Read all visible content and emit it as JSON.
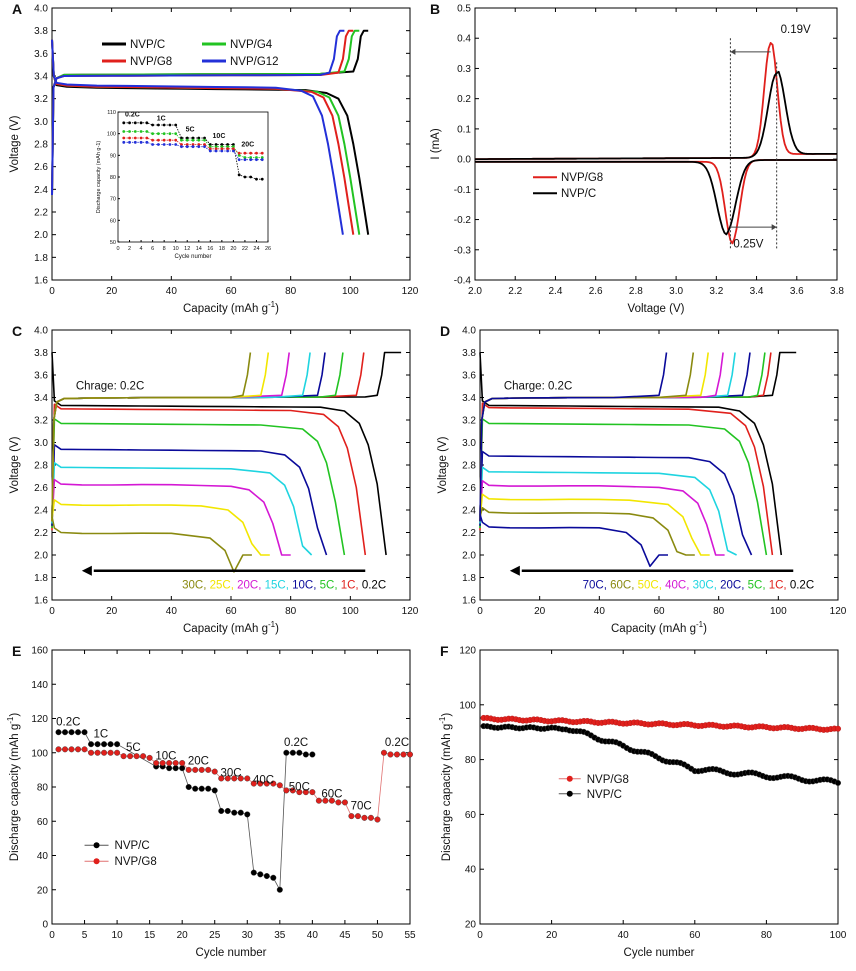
{
  "colors": {
    "black": "#000000",
    "red": "#e0201c",
    "green": "#22c322",
    "blue": "#2330d8",
    "olive": "#8a8a10",
    "yellow": "#f2e600",
    "magenta": "#d418d4",
    "cyan": "#1fd4e0",
    "navy": "#0a0a9a",
    "orange": "#f0a020"
  },
  "chart_data": [
    {
      "id": "A",
      "type": "line",
      "label": "A",
      "xlabel": "Capacity (mAh g",
      "xlabel_sup": "-1",
      "xlabel_end": ")",
      "ylabel": "Voltage (V)",
      "xlim": [
        0,
        120
      ],
      "ylim": [
        1.6,
        4.0
      ],
      "xticks": [
        "0",
        "20",
        "40",
        "60",
        "80",
        "100",
        "120"
      ],
      "yticks": [
        "1.6",
        "1.8",
        "2.0",
        "2.2",
        "2.4",
        "2.6",
        "2.8",
        "3.0",
        "3.2",
        "3.4",
        "3.6",
        "3.8",
        "4.0"
      ],
      "legend": [
        {
          "name": "NVP/C",
          "color": "#000000"
        },
        {
          "name": "NVP/G4",
          "color": "#22c322"
        },
        {
          "name": "NVP/G8",
          "color": "#e0201c"
        },
        {
          "name": "NVP/G12",
          "color": "#2330d8"
        }
      ],
      "series": [
        {
          "name": "NVP/C",
          "color": "#000000",
          "charge_cap": 105,
          "discharge_cap": 106,
          "charge_v": 3.41,
          "discharge_v": 3.3
        },
        {
          "name": "NVP/G4",
          "color": "#22c322",
          "charge_cap": 102,
          "discharge_cap": 103,
          "charge_v": 3.41,
          "discharge_v": 3.31
        },
        {
          "name": "NVP/G8",
          "color": "#e0201c",
          "charge_cap": 100,
          "discharge_cap": 101,
          "charge_v": 3.4,
          "discharge_v": 3.31
        },
        {
          "name": "NVP/G12",
          "color": "#2330d8",
          "charge_cap": 97,
          "discharge_cap": 97.5,
          "charge_v": 3.4,
          "discharge_v": 3.32
        }
      ],
      "inset": {
        "xlabel": "Cycle number",
        "ylabel": "Discharge capacity (mAh g",
        "ylabel_sup": "-1",
        "ylabel_end": ")",
        "xlim": [
          0,
          26
        ],
        "ylim": [
          50,
          110
        ],
        "xticks": [
          "0",
          "2",
          "4",
          "6",
          "8",
          "10",
          "12",
          "14",
          "16",
          "18",
          "20",
          "22",
          "24",
          "26"
        ],
        "yticks": [
          "50",
          "60",
          "70",
          "80",
          "90",
          "100",
          "110"
        ],
        "rate_labels": [
          "0.2C",
          "1C",
          "5C",
          "10C",
          "20C"
        ],
        "series": [
          {
            "name": "NVP/C",
            "color": "#000000",
            "values": [
              105,
              105,
              105,
              105,
              105,
              104,
              104,
              104,
              104,
              104,
              98,
              98,
              98,
              98,
              98,
              95,
              95,
              95,
              95,
              95,
              81,
              80,
              80,
              79,
              79
            ]
          },
          {
            "name": "NVP/G4",
            "color": "#22c322",
            "values": [
              101,
              101,
              101,
              101,
              101,
              100,
              100,
              100,
              100,
              100,
              97,
              97,
              97,
              97,
              97,
              94,
              94,
              94,
              94,
              94,
              90,
              89,
              89,
              89,
              89
            ]
          },
          {
            "name": "NVP/G8",
            "color": "#e0201c",
            "values": [
              98,
              98,
              98,
              98,
              98,
              97,
              97,
              97,
              97,
              97,
              95,
              95,
              95,
              95,
              95,
              93,
              93,
              93,
              93,
              93,
              91,
              91,
              91,
              91,
              91
            ]
          },
          {
            "name": "NVP/G12",
            "color": "#2330d8",
            "values": [
              96,
              96,
              96,
              96,
              96,
              95,
              95,
              95,
              95,
              95,
              94,
              94,
              94,
              94,
              94,
              92,
              92,
              92,
              92,
              92,
              88,
              88,
              88,
              88,
              88
            ]
          }
        ]
      }
    },
    {
      "id": "B",
      "type": "line",
      "label": "B",
      "xlabel": "Voltage (V)",
      "ylabel": "I (mA)",
      "xlim": [
        2.0,
        3.8
      ],
      "ylim": [
        -0.4,
        0.5
      ],
      "xticks": [
        "2.0",
        "2.2",
        "2.4",
        "2.6",
        "2.8",
        "3.0",
        "3.2",
        "3.4",
        "3.6",
        "3.8"
      ],
      "yticks": [
        "-0.4",
        "-0.3",
        "-0.2",
        "-0.1",
        "0.0",
        "0.1",
        "0.2",
        "0.3",
        "0.4",
        "0.5"
      ],
      "legend": [
        {
          "name": "NVP/G8",
          "color": "#e0201c"
        },
        {
          "name": "NVP/C",
          "color": "#000000"
        }
      ],
      "annotations": {
        "top": "0.19V",
        "bottom": "0.25V"
      },
      "series": [
        {
          "name": "NVP/G8",
          "color": "#e0201c",
          "ox_peak_v": 3.47,
          "ox_peak_i": 0.38,
          "red_peak_v": 3.28,
          "red_peak_i": -0.27
        },
        {
          "name": "NVP/C",
          "color": "#000000",
          "ox_peak_v": 3.5,
          "ox_peak_i": 0.28,
          "red_peak_v": 3.25,
          "red_peak_i": -0.24
        }
      ]
    },
    {
      "id": "C",
      "type": "line",
      "label": "C",
      "xlabel": "Capacity (mAh g",
      "xlabel_sup": "-1",
      "xlabel_end": ")",
      "ylabel": "Voltage (V)",
      "xlim": [
        0,
        120
      ],
      "ylim": [
        1.6,
        4.0
      ],
      "xticks": [
        "0",
        "20",
        "40",
        "60",
        "80",
        "100",
        "120"
      ],
      "yticks": [
        "1.6",
        "1.8",
        "2.0",
        "2.2",
        "2.4",
        "2.6",
        "2.8",
        "3.0",
        "3.2",
        "3.4",
        "3.6",
        "3.8",
        "4.0"
      ],
      "charge_label": "Chrage: 0.2C",
      "rate_labels": [
        {
          "t": "30C",
          "color": "#8a8a10"
        },
        {
          "t": "25C",
          "color": "#f2e600"
        },
        {
          "t": "20C",
          "color": "#d418d4"
        },
        {
          "t": "15C",
          "color": "#1fd4e0"
        },
        {
          "t": "10C",
          "color": "#0a0a9a"
        },
        {
          "t": "5C",
          "color": "#22c322"
        },
        {
          "t": "1C",
          "color": "#e0201c"
        },
        {
          "t": "0.2C",
          "color": "#000000"
        }
      ],
      "series": [
        {
          "name": "0.2C",
          "color": "#000000",
          "discharge_cap": 112,
          "plateau_v": 3.33,
          "charge_cap": 112
        },
        {
          "name": "1C",
          "color": "#e0201c",
          "discharge_cap": 105,
          "plateau_v": 3.3,
          "charge_cap": 105
        },
        {
          "name": "5C",
          "color": "#22c322",
          "discharge_cap": 98,
          "plateau_v": 3.17,
          "charge_cap": 98
        },
        {
          "name": "10C",
          "color": "#0a0a9a",
          "discharge_cap": 92,
          "plateau_v": 2.94,
          "charge_cap": 92
        },
        {
          "name": "15C",
          "color": "#1fd4e0",
          "discharge_cap": 87,
          "plateau_v": 2.78,
          "charge_cap": 87
        },
        {
          "name": "20C",
          "color": "#d418d4",
          "discharge_cap": 80,
          "plateau_v": 2.63,
          "charge_cap": 80
        },
        {
          "name": "25C",
          "color": "#f2e600",
          "discharge_cap": 73,
          "plateau_v": 2.45,
          "charge_cap": 73
        },
        {
          "name": "30C",
          "color": "#8a8a10",
          "discharge_cap": 67,
          "plateau_v": 2.2,
          "charge_cap": 67
        }
      ]
    },
    {
      "id": "D",
      "type": "line",
      "label": "D",
      "xlabel": "Capacity (mAh g",
      "xlabel_sup": "-1",
      "xlabel_end": ")",
      "ylabel": "Voltage (V)",
      "xlim": [
        0,
        120
      ],
      "ylim": [
        1.6,
        4.0
      ],
      "xticks": [
        "0",
        "20",
        "40",
        "60",
        "80",
        "100",
        "120"
      ],
      "yticks": [
        "1.6",
        "1.8",
        "2.0",
        "2.2",
        "2.4",
        "2.6",
        "2.8",
        "3.0",
        "3.2",
        "3.4",
        "3.6",
        "3.8",
        "4.0"
      ],
      "charge_label": "Charge: 0.2C",
      "rate_labels": [
        {
          "t": "70C",
          "color": "#0a0a9a"
        },
        {
          "t": "60C",
          "color": "#8a8a10"
        },
        {
          "t": "50C",
          "color": "#f2e600"
        },
        {
          "t": "40C",
          "color": "#d418d4"
        },
        {
          "t": "30C",
          "color": "#1fd4e0"
        },
        {
          "t": "20C",
          "color": "#0a0a9a"
        },
        {
          "t": "5C",
          "color": "#22c322"
        },
        {
          "t": "1C",
          "color": "#e0201c"
        },
        {
          "t": "0.2C",
          "color": "#000000"
        }
      ],
      "series": [
        {
          "name": "0.2C",
          "color": "#000000",
          "discharge_cap": 101,
          "plateau_v": 3.33,
          "charge_cap": 101
        },
        {
          "name": "1C",
          "color": "#e0201c",
          "discharge_cap": 98,
          "plateau_v": 3.31,
          "charge_cap": 98
        },
        {
          "name": "5C",
          "color": "#22c322",
          "discharge_cap": 96,
          "plateau_v": 3.17,
          "charge_cap": 96
        },
        {
          "name": "20C",
          "color": "#0a0a9a",
          "discharge_cap": 91,
          "plateau_v": 2.88,
          "charge_cap": 91
        },
        {
          "name": "30C",
          "color": "#1fd4e0",
          "discharge_cap": 86,
          "plateau_v": 2.74,
          "charge_cap": 86
        },
        {
          "name": "40C",
          "color": "#d418d4",
          "discharge_cap": 82,
          "plateau_v": 2.62,
          "charge_cap": 82
        },
        {
          "name": "50C",
          "color": "#f2e600",
          "discharge_cap": 77,
          "plateau_v": 2.5,
          "charge_cap": 77
        },
        {
          "name": "60C",
          "color": "#8a8a10",
          "discharge_cap": 72,
          "plateau_v": 2.38,
          "charge_cap": 72
        },
        {
          "name": "70C",
          "color": "#0a0a9a",
          "discharge_cap": 63,
          "plateau_v": 2.25,
          "charge_cap": 63
        }
      ]
    },
    {
      "id": "E",
      "type": "scatter",
      "label": "E",
      "xlabel": "Cycle number",
      "ylabel": "Discharge capacity (mAh g",
      "ylabel_sup": "-1",
      "ylabel_end": ")",
      "xlim": [
        0,
        55
      ],
      "ylim": [
        0,
        160
      ],
      "xticks": [
        "0",
        "5",
        "10",
        "15",
        "20",
        "25",
        "30",
        "35",
        "40",
        "45",
        "50",
        "55"
      ],
      "yticks": [
        "0",
        "20",
        "40",
        "60",
        "80",
        "100",
        "120",
        "140",
        "160"
      ],
      "legend": [
        {
          "name": "NVP/C",
          "color": "#000000"
        },
        {
          "name": "NVP/G8",
          "color": "#e0201c"
        }
      ],
      "rate_labels": [
        {
          "t": "0.2C",
          "x": 2.5,
          "y": 116
        },
        {
          "t": "1C",
          "x": 7.5,
          "y": 109
        },
        {
          "t": "5C",
          "x": 12.5,
          "y": 101
        },
        {
          "t": "10C",
          "x": 17.5,
          "y": 96
        },
        {
          "t": "20C",
          "x": 22.5,
          "y": 93
        },
        {
          "t": "30C",
          "x": 27.5,
          "y": 86
        },
        {
          "t": "40C",
          "x": 32.5,
          "y": 82
        },
        {
          "t": "50C",
          "x": 38,
          "y": 78
        },
        {
          "t": "0.2C",
          "x": 37.5,
          "y": 104
        },
        {
          "t": "60C",
          "x": 43,
          "y": 74
        },
        {
          "t": "70C",
          "x": 47.5,
          "y": 67
        },
        {
          "t": "0.2C",
          "x": 53,
          "y": 104
        }
      ],
      "series": [
        {
          "name": "NVP/C",
          "color": "#000000",
          "x": [
            1,
            2,
            3,
            4,
            5,
            6,
            7,
            8,
            9,
            10,
            16,
            17,
            18,
            19,
            20,
            21,
            22,
            23,
            24,
            25,
            26,
            27,
            28,
            29,
            30,
            31,
            32,
            33,
            34,
            35,
            36,
            37,
            38,
            39,
            40
          ],
          "values": [
            112,
            112,
            112,
            112,
            112,
            105,
            105,
            105,
            105,
            105,
            92,
            92,
            91,
            91,
            91,
            80,
            79,
            79,
            79,
            78,
            66,
            66,
            65,
            65,
            64,
            30,
            29,
            28,
            27,
            20,
            100,
            100,
            100,
            99,
            99
          ]
        },
        {
          "name": "NVP/G8",
          "color": "#e0201c",
          "x": [
            1,
            2,
            3,
            4,
            5,
            6,
            7,
            8,
            9,
            10,
            11,
            12,
            13,
            14,
            15,
            16,
            17,
            18,
            19,
            20,
            21,
            22,
            23,
            24,
            25,
            26,
            27,
            28,
            29,
            30,
            31,
            32,
            33,
            34,
            35,
            36,
            37,
            38,
            39,
            40,
            41,
            42,
            43,
            44,
            45,
            46,
            47,
            48,
            49,
            50,
            51,
            52,
            53,
            54,
            55
          ],
          "values": [
            102,
            102,
            102,
            102,
            102,
            100,
            100,
            100,
            100,
            100,
            98,
            98,
            98,
            98,
            97,
            94,
            94,
            94,
            94,
            94,
            90,
            90,
            90,
            90,
            89,
            85,
            85,
            85,
            85,
            85,
            82,
            82,
            82,
            82,
            81,
            78,
            78,
            77,
            77,
            77,
            72,
            72,
            72,
            71,
            71,
            63,
            63,
            62,
            62,
            61,
            100,
            99,
            99,
            99,
            99
          ]
        }
      ]
    },
    {
      "id": "F",
      "type": "scatter",
      "label": "F",
      "xlabel": "Cycle number",
      "ylabel": "Discharge capacity (mAh g",
      "ylabel_sup": "-1",
      "ylabel_end": ")",
      "xlim": [
        0,
        100
      ],
      "ylim": [
        20,
        120
      ],
      "xticks": [
        "0",
        "20",
        "40",
        "60",
        "80",
        "100"
      ],
      "yticks": [
        "20",
        "40",
        "60",
        "80",
        "100",
        "120"
      ],
      "legend": [
        {
          "name": "NVP/G8",
          "color": "#e0201c"
        },
        {
          "name": "NVP/C",
          "color": "#000000"
        }
      ],
      "series": [
        {
          "name": "NVP/G8",
          "color": "#e0201c",
          "start": 95,
          "end": 91
        },
        {
          "name": "NVP/C",
          "color": "#000000",
          "start": 92,
          "end": 71.5
        }
      ]
    }
  ]
}
